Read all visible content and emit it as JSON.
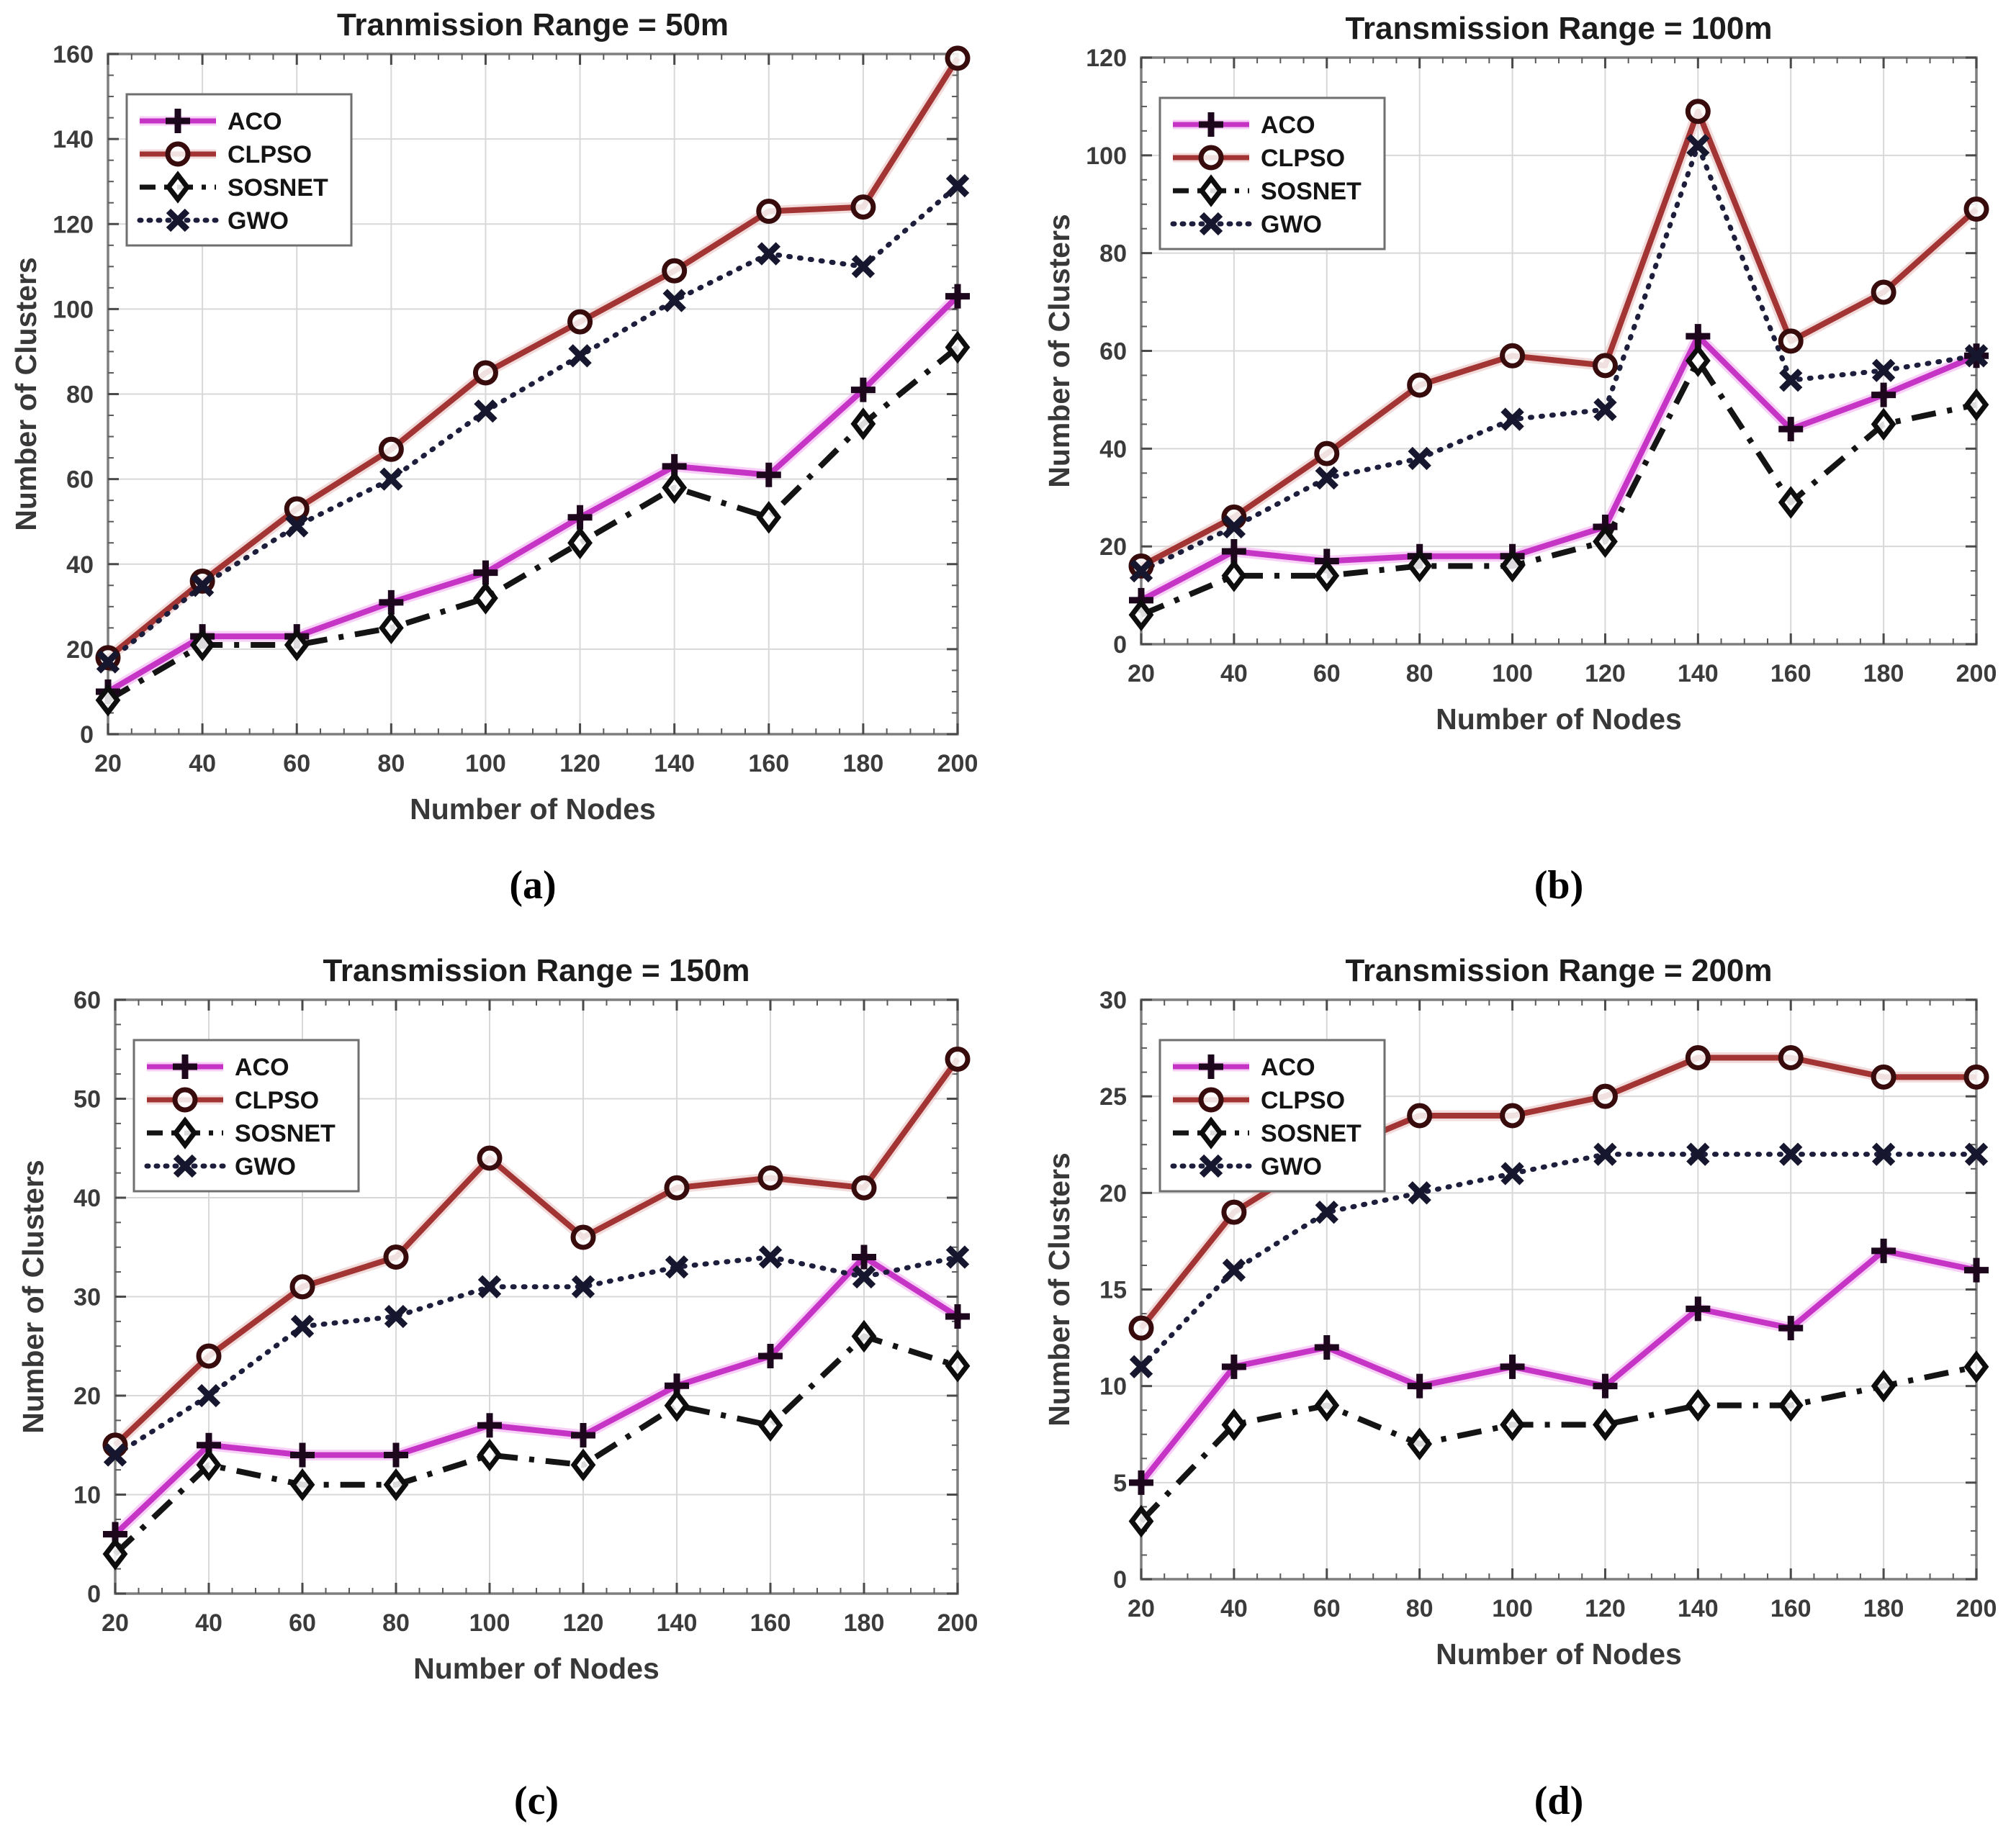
{
  "figure": {
    "description": "Four line charts of Number of Clusters vs Number of Nodes for different transmission ranges",
    "background": "#ffffff"
  },
  "styles": {
    "aco_color": "#c634c6",
    "aco_halo": "#f1a8f1",
    "clpso_color": "#a23434",
    "clpso_halo": "#e7bdbd",
    "sosnet_color": "#141414",
    "gwo_color": "#1d1d3c",
    "grid_color": "#d8d8d8",
    "border_color": "#7e7e7e"
  },
  "legend": {
    "entries": [
      "ACO",
      "CLPSO",
      "SOSNET",
      "GWO"
    ],
    "position": "upper-left"
  },
  "chart_data": [
    {
      "id": "a",
      "type": "line",
      "caption": "(a)",
      "title": "Tranmission Range = 50m",
      "xlabel": "Number of Nodes",
      "ylabel": "Number of Clusters",
      "x": [
        20,
        40,
        60,
        80,
        100,
        120,
        140,
        160,
        180,
        200
      ],
      "xlim": [
        20,
        200
      ],
      "ylim": [
        0,
        160
      ],
      "yticks": [
        0,
        20,
        40,
        60,
        80,
        100,
        120,
        140,
        160
      ],
      "grid": true,
      "legend_position": "upper-left",
      "series": [
        {
          "name": "ACO",
          "line": "solid",
          "marker": "plus",
          "color": "#c634c6",
          "halo": "#f1a8f1",
          "marker_color": "#1d071d",
          "values": [
            10,
            23,
            23,
            31,
            38,
            51,
            63,
            61,
            81,
            103
          ]
        },
        {
          "name": "CLPSO",
          "line": "solid",
          "marker": "circle",
          "color": "#a23434",
          "halo": "#e7bdbd",
          "marker_color": "#380c0c",
          "values": [
            18,
            36,
            53,
            67,
            85,
            97,
            109,
            123,
            124,
            159
          ]
        },
        {
          "name": "SOSNET",
          "line": "dashdot",
          "marker": "diamond",
          "color": "#141414",
          "halo": null,
          "marker_color": "#0d0d0d",
          "values": [
            8,
            21,
            21,
            25,
            32,
            45,
            58,
            51,
            73,
            91
          ]
        },
        {
          "name": "GWO",
          "line": "dotted",
          "marker": "x",
          "color": "#1d1d3c",
          "halo": null,
          "marker_color": "#16162e",
          "values": [
            17,
            35,
            49,
            60,
            76,
            89,
            102,
            113,
            110,
            129
          ]
        }
      ]
    },
    {
      "id": "b",
      "type": "line",
      "caption": "(b)",
      "title": "Transmission Range = 100m",
      "xlabel": "Number of Nodes",
      "ylabel": "Number of Clusters",
      "x": [
        20,
        40,
        60,
        80,
        100,
        120,
        140,
        160,
        180,
        200
      ],
      "xlim": [
        20,
        200
      ],
      "ylim": [
        0,
        120
      ],
      "yticks": [
        0,
        20,
        40,
        60,
        80,
        100,
        120
      ],
      "grid": true,
      "legend_position": "upper-left",
      "series": [
        {
          "name": "ACO",
          "line": "solid",
          "marker": "plus",
          "color": "#c634c6",
          "halo": "#f1a8f1",
          "marker_color": "#1d071d",
          "values": [
            9,
            19,
            17,
            18,
            18,
            24,
            63,
            44,
            51,
            59
          ]
        },
        {
          "name": "CLPSO",
          "line": "solid",
          "marker": "circle",
          "color": "#a23434",
          "halo": "#e7bdbd",
          "marker_color": "#380c0c",
          "values": [
            16,
            26,
            39,
            53,
            59,
            57,
            109,
            62,
            72,
            89
          ]
        },
        {
          "name": "SOSNET",
          "line": "dashdot",
          "marker": "diamond",
          "color": "#141414",
          "halo": null,
          "marker_color": "#0d0d0d",
          "values": [
            6,
            14,
            14,
            16,
            16,
            21,
            58,
            29,
            45,
            49
          ]
        },
        {
          "name": "GWO",
          "line": "dotted",
          "marker": "x",
          "color": "#1d1d3c",
          "halo": null,
          "marker_color": "#16162e",
          "values": [
            15,
            24,
            34,
            38,
            46,
            48,
            102,
            54,
            56,
            59
          ]
        }
      ]
    },
    {
      "id": "c",
      "type": "line",
      "caption": "(c)",
      "title": "Transmission Range = 150m",
      "xlabel": "Number of Nodes",
      "ylabel": "Number of Clusters",
      "x": [
        20,
        40,
        60,
        80,
        100,
        120,
        140,
        160,
        180,
        200
      ],
      "xlim": [
        20,
        200
      ],
      "ylim": [
        0,
        60
      ],
      "yticks": [
        0,
        10,
        20,
        30,
        40,
        50,
        60
      ],
      "grid": true,
      "legend_position": "upper-left",
      "series": [
        {
          "name": "ACO",
          "line": "solid",
          "marker": "plus",
          "color": "#c634c6",
          "halo": "#f1a8f1",
          "marker_color": "#1d071d",
          "values": [
            6,
            15,
            14,
            14,
            17,
            16,
            21,
            24,
            34,
            28
          ]
        },
        {
          "name": "CLPSO",
          "line": "solid",
          "marker": "circle",
          "color": "#a23434",
          "halo": "#e7bdbd",
          "marker_color": "#380c0c",
          "values": [
            15,
            24,
            31,
            34,
            44,
            36,
            41,
            42,
            41,
            54
          ]
        },
        {
          "name": "SOSNET",
          "line": "dashdot",
          "marker": "diamond",
          "color": "#141414",
          "halo": null,
          "marker_color": "#0d0d0d",
          "values": [
            4,
            13,
            11,
            11,
            14,
            13,
            19,
            17,
            26,
            23
          ]
        },
        {
          "name": "GWO",
          "line": "dotted",
          "marker": "x",
          "color": "#1d1d3c",
          "halo": null,
          "marker_color": "#16162e",
          "values": [
            14,
            20,
            27,
            28,
            31,
            31,
            33,
            34,
            32,
            34
          ]
        }
      ]
    },
    {
      "id": "d",
      "type": "line",
      "caption": "(d)",
      "title": "Transmission Range = 200m",
      "xlabel": "Number of Nodes",
      "ylabel": "Number of Clusters",
      "x": [
        20,
        40,
        60,
        80,
        100,
        120,
        140,
        160,
        180,
        200
      ],
      "xlim": [
        20,
        200
      ],
      "ylim": [
        0,
        30
      ],
      "yticks": [
        0,
        5,
        10,
        15,
        20,
        25,
        30
      ],
      "grid": true,
      "legend_position": "upper-left",
      "series": [
        {
          "name": "ACO",
          "line": "solid",
          "marker": "plus",
          "color": "#c634c6",
          "halo": "#f1a8f1",
          "marker_color": "#1d071d",
          "values": [
            5,
            11,
            12,
            10,
            11,
            10,
            14,
            13,
            17,
            16
          ]
        },
        {
          "name": "CLPSO",
          "line": "solid",
          "marker": "circle",
          "color": "#a23434",
          "halo": "#e7bdbd",
          "marker_color": "#380c0c",
          "values": [
            13,
            19,
            22,
            24,
            24,
            25,
            27,
            27,
            26,
            26
          ]
        },
        {
          "name": "SOSNET",
          "line": "dashdot",
          "marker": "diamond",
          "color": "#141414",
          "halo": null,
          "marker_color": "#0d0d0d",
          "values": [
            3,
            8,
            9,
            7,
            8,
            8,
            9,
            9,
            10,
            11
          ]
        },
        {
          "name": "GWO",
          "line": "dotted",
          "marker": "x",
          "color": "#1d1d3c",
          "halo": null,
          "marker_color": "#16162e",
          "values": [
            11,
            16,
            19,
            20,
            21,
            22,
            22,
            22,
            22,
            22
          ]
        }
      ]
    }
  ]
}
